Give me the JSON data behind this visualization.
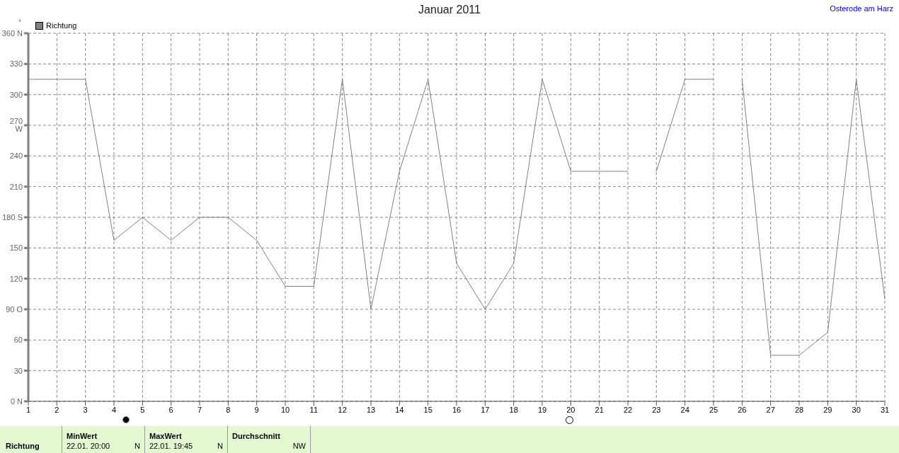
{
  "chart_data": {
    "type": "line",
    "title": "Januar 2011",
    "subtitle": "Osterode am Harz",
    "ylabel": "°",
    "x": [
      1,
      2,
      3,
      4,
      5,
      6,
      7,
      8,
      9,
      10,
      11,
      12,
      13,
      14,
      15,
      16,
      17,
      18,
      19,
      20,
      21,
      22,
      22.5,
      23,
      24,
      25,
      25.5,
      26,
      27,
      28,
      29,
      30,
      31
    ],
    "series": [
      {
        "name": "Richtung",
        "color": "#808080",
        "values": [
          315,
          315,
          315,
          157.5,
          180,
          157.5,
          180,
          180,
          157.5,
          112.5,
          112.5,
          315,
          90,
          225,
          315,
          135,
          90,
          135,
          315,
          225,
          225,
          225,
          null,
          225,
          315,
          315,
          null,
          315,
          45,
          45,
          67.5,
          315,
          100
        ]
      }
    ],
    "xlim": [
      1,
      31
    ],
    "xticks": [
      1,
      2,
      3,
      4,
      5,
      6,
      7,
      8,
      9,
      10,
      11,
      12,
      13,
      14,
      15,
      16,
      17,
      18,
      19,
      20,
      21,
      22,
      23,
      24,
      25,
      26,
      27,
      28,
      29,
      30,
      31
    ],
    "ylim": [
      0,
      360
    ],
    "yticks": [
      {
        "value": 0,
        "label": "0 N"
      },
      30,
      60,
      {
        "value": 90,
        "label": "90 O"
      },
      120,
      150,
      {
        "value": 180,
        "label": "180 S"
      },
      210,
      240,
      {
        "value": 270,
        "label": "270 W"
      },
      300,
      330,
      {
        "value": 360,
        "label": "360 N"
      }
    ],
    "grid": true,
    "legend": "top left",
    "marker": "none",
    "line_style": "solid",
    "annotations": [
      "Richtung",
      "MinWert",
      "22.01.  20:00",
      "N",
      "MaxWert",
      "22.01.  19:45",
      "N",
      "Durchschnitt",
      "NW"
    ]
  }
}
